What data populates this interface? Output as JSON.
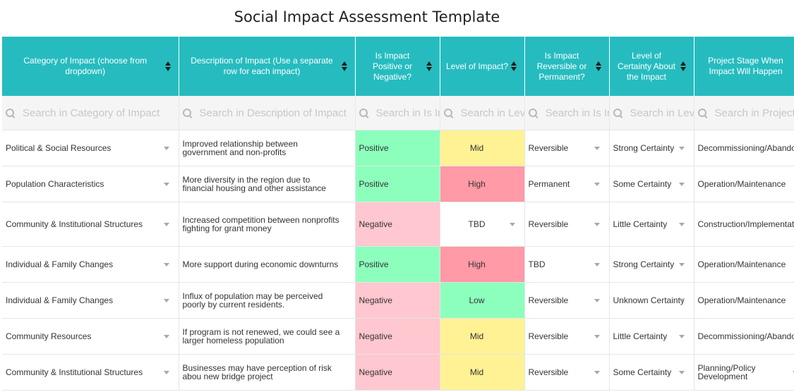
{
  "title": "Social Impact Assessment Template",
  "colors": {
    "header_bg": "#26bcbf",
    "positive": "#8cffbd",
    "negative": "#ffc7cf",
    "high": "#ff9aa6",
    "mid": "#fff295",
    "low": "#8cffbd",
    "tbd": "#ffffff"
  },
  "columns": [
    {
      "label": "Category of Impact (choose from dropdown)",
      "search_placeholder": "Search in Category of Impact"
    },
    {
      "label": "Description of Impact (Use a separate row for each impact)",
      "search_placeholder": "Search in Description of Impact"
    },
    {
      "label": "Is Impact Positive or Negative?",
      "search_placeholder": "Search in Is Impact Positive or Negative?"
    },
    {
      "label": "Level of Impact?",
      "search_placeholder": "Search in Level of Impact?"
    },
    {
      "label": "Is Impact Reversible or Permanent?",
      "search_placeholder": "Search in Is Impact Reversible or Permanent?"
    },
    {
      "label": "Level of Certainty About the Impact",
      "search_placeholder": "Search in Level of Certainty About the Impact"
    },
    {
      "label": "Project Stage When Impact Will Happen",
      "search_placeholder": "Search in Project Stage When Impact Will Happen"
    }
  ],
  "rows": [
    {
      "category": "Political & Social Resources",
      "description": "Improved relationship between government and non-profits",
      "sign": "Positive",
      "level": "Mid",
      "reversibility": "Reversible",
      "certainty": "Strong Certainty",
      "stage": "Decommissioning/Abandonment"
    },
    {
      "category": "Population Characteristics",
      "description": "More diversity in the region due to financial housing and other assistance",
      "sign": "Positive",
      "level": "High",
      "reversibility": "Permanent",
      "certainty": "Some Certainty",
      "stage": "Operation/Maintenance"
    },
    {
      "category": "Community & Institutional Structures",
      "description": "Increased competition between nonprofits fighting for grant money",
      "sign": "Negative",
      "level": "TBD",
      "reversibility": "Reversible",
      "certainty": "Little Certainty",
      "stage": "Construction/Implementation"
    },
    {
      "category": "Individual & Family Changes",
      "description": "More support during economic downturns",
      "sign": "Positive",
      "level": "High",
      "reversibility": "TBD",
      "certainty": "Strong Certainty",
      "stage": "Operation/Maintenance"
    },
    {
      "category": "Individual & Family Changes",
      "description": "Influx of population may be perceived poorly by current residents.",
      "sign": "Negative",
      "level": "Low",
      "reversibility": "Reversible",
      "certainty": "Unknown Certainty",
      "stage": "Operation/Maintenance"
    },
    {
      "category": "Community Resources",
      "description": "If program is not renewed, we could see a larger homeless population",
      "sign": "Negative",
      "level": "Mid",
      "reversibility": "Reversible",
      "certainty": "Little Certainty",
      "stage": "Decommissioning/Abandonment"
    },
    {
      "category": "Community & Institutional Structures",
      "description": "Businesses may have perception of risk abou new bridge project",
      "sign": "Negative",
      "level": "Mid",
      "reversibility": "Reversible",
      "certainty": "Some Certainty",
      "stage": "Planning/Policy Development"
    }
  ]
}
